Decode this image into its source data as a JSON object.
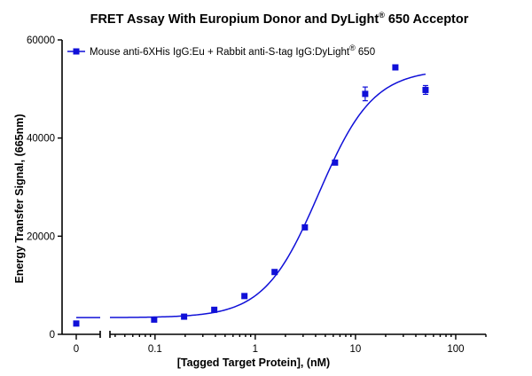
{
  "chart_data": {
    "type": "scatter",
    "title": "FRET Assay With Europium Donor and DyLight",
    "title_sup": "®",
    "title_tail": " 650 Acceptor",
    "xlabel": "[Tagged Target Protein], (nM)",
    "ylabel": "Energy Transfer Signal, (665nm)",
    "x_scale": "log",
    "x_split_axis": true,
    "xlim_log": [
      0.0355,
      200
    ],
    "ylim": [
      0,
      60000
    ],
    "x_ticks": [
      {
        "value": 0,
        "label": "0"
      },
      {
        "value": 0.1,
        "label": "0.1"
      },
      {
        "value": 1,
        "label": "1"
      },
      {
        "value": 10,
        "label": "10"
      },
      {
        "value": 100,
        "label": "100"
      }
    ],
    "y_ticks": [
      {
        "value": 0,
        "label": "0"
      },
      {
        "value": 20000,
        "label": "20000"
      },
      {
        "value": 40000,
        "label": "40000"
      },
      {
        "value": 60000,
        "label": "60000"
      }
    ],
    "grid": false,
    "legend_position": "top-left",
    "series": [
      {
        "name": "Mouse anti-6XHis IgG:Eu + Rabbit anti-S-tag IgG:DyLight",
        "name_sup": "®",
        "name_tail": " 650",
        "color": "#1010d8",
        "points": [
          {
            "x": 0,
            "y": 2200,
            "err": 0
          },
          {
            "x": 0.098,
            "y": 3000,
            "err": 0
          },
          {
            "x": 0.195,
            "y": 3600,
            "err": 0
          },
          {
            "x": 0.39,
            "y": 5000,
            "err": 0
          },
          {
            "x": 0.78,
            "y": 7800,
            "err": 0
          },
          {
            "x": 1.56,
            "y": 12700,
            "err": 0
          },
          {
            "x": 3.125,
            "y": 21800,
            "err": 0
          },
          {
            "x": 6.25,
            "y": 35000,
            "err": 0
          },
          {
            "x": 12.5,
            "y": 49000,
            "err": 1400
          },
          {
            "x": 25,
            "y": 54400,
            "err": 0
          },
          {
            "x": 50,
            "y": 49800,
            "err": 900
          }
        ],
        "fit": {
          "model": "four-parameter logistic",
          "bottom": 3400,
          "top": 54000,
          "ec50": 4.3,
          "hill": 1.6,
          "x_range": [
            0.0355,
            50
          ]
        }
      }
    ]
  }
}
